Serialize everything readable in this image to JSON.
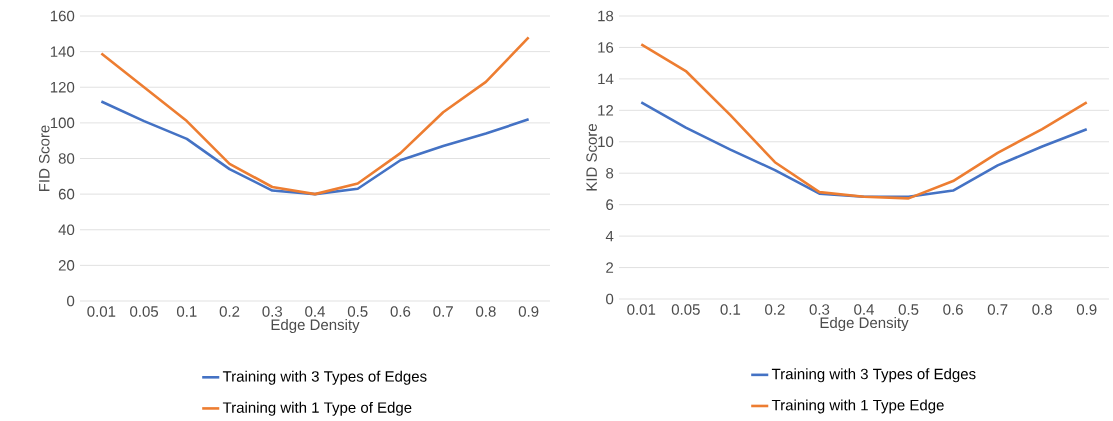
{
  "chart_data": [
    {
      "type": "line",
      "xlabel": "Edge Density",
      "ylabel": "FID Score",
      "categories": [
        "0.01",
        "0.05",
        "0.1",
        "0.2",
        "0.3",
        "0.4",
        "0.5",
        "0.6",
        "0.7",
        "0.8",
        "0.9"
      ],
      "ylim": [
        0,
        160
      ],
      "yticks": [
        0,
        20,
        40,
        60,
        80,
        100,
        120,
        140,
        160
      ],
      "grid": "y",
      "legend": "bottom",
      "series": [
        {
          "name": "Training with 3 Types of Edges",
          "color": "#4472c4",
          "values": [
            112,
            101,
            91,
            74,
            62,
            60,
            63,
            79,
            87,
            94,
            102
          ]
        },
        {
          "name": "Training with 1 Type of Edge",
          "color": "#ed7d31",
          "values": [
            139,
            120,
            101,
            77,
            64,
            60,
            66,
            83,
            106,
            123,
            148
          ]
        }
      ]
    },
    {
      "type": "line",
      "xlabel": "Edge Density",
      "ylabel": "KID Score",
      "categories": [
        "0.01",
        "0.05",
        "0.1",
        "0.2",
        "0.3",
        "0.4",
        "0.5",
        "0.6",
        "0.7",
        "0.8",
        "0.9"
      ],
      "ylim": [
        0,
        18
      ],
      "yticks": [
        0,
        2,
        4,
        6,
        8,
        10,
        12,
        14,
        16,
        18
      ],
      "grid": "y",
      "legend": "bottom",
      "series": [
        {
          "name": "Training with 3 Types of Edges",
          "color": "#4472c4",
          "values": [
            12.5,
            10.9,
            9.5,
            8.2,
            6.7,
            6.5,
            6.5,
            6.9,
            8.5,
            9.7,
            10.8
          ]
        },
        {
          "name": "Training with 1 Type Edge",
          "color": "#ed7d31",
          "values": [
            16.2,
            14.5,
            11.7,
            8.7,
            6.8,
            6.5,
            6.4,
            7.5,
            9.3,
            10.8,
            12.5
          ]
        }
      ]
    }
  ]
}
